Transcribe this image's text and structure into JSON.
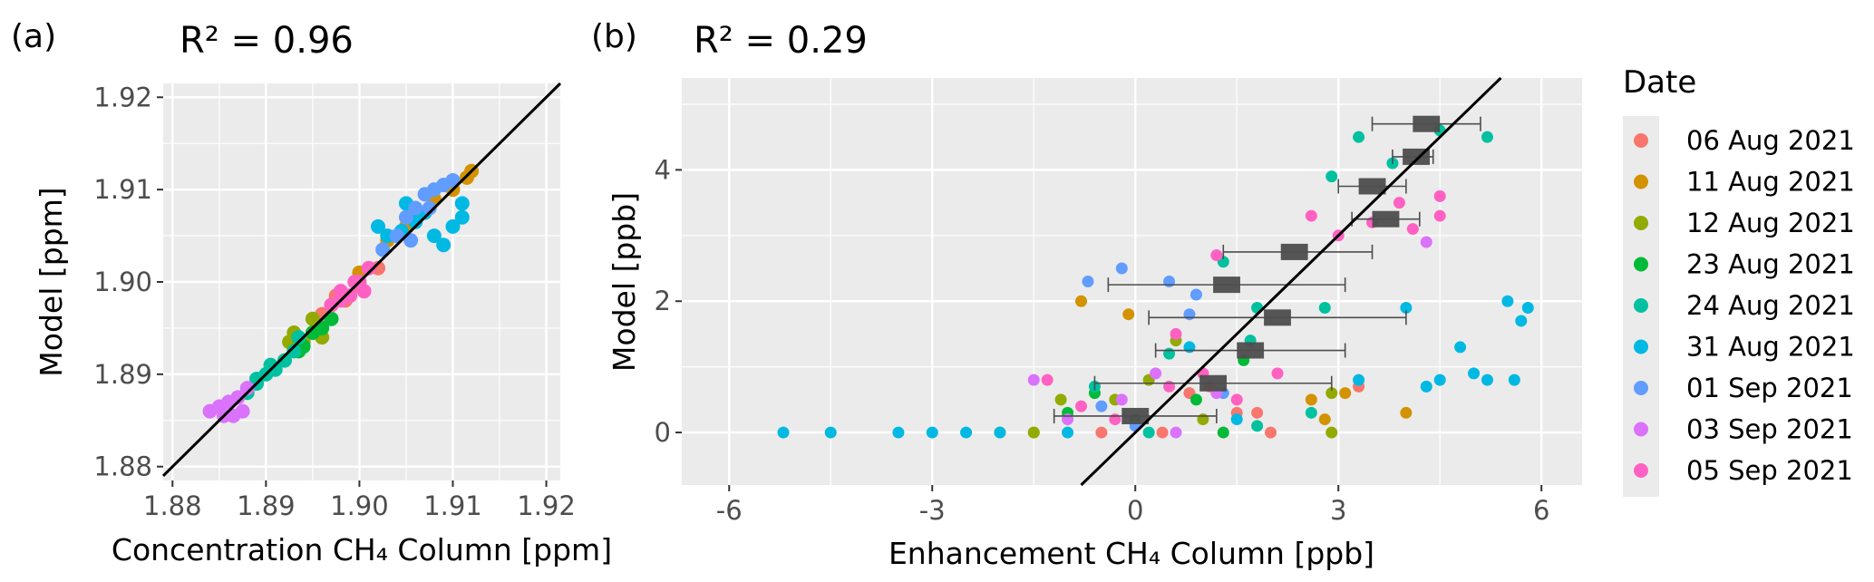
{
  "colors": {
    "06 Aug 2021": "#F8766D",
    "11 Aug 2021": "#D39200",
    "12 Aug 2021": "#93AA00",
    "23 Aug 2021": "#00BA38",
    "24 Aug 2021": "#00C19F",
    "31 Aug 2021": "#00B9E3",
    "01 Sep 2021": "#619CFF",
    "03 Sep 2021": "#DB72FB",
    "05 Sep 2021": "#FF61C3",
    "panel_bg": "#EBEBEB",
    "grid": "#FFFFFF",
    "box": "#4D4D4D"
  },
  "legend": {
    "title": "Date",
    "entries": [
      "06 Aug 2021",
      "11 Aug 2021",
      "12 Aug 2021",
      "23 Aug 2021",
      "24 Aug 2021",
      "31 Aug 2021",
      "01 Sep 2021",
      "03 Sep 2021",
      "05 Sep 2021"
    ],
    "placement": "right"
  },
  "chart_data": [
    {
      "panel_label": "(a)",
      "type": "scatter",
      "annotation": "R² = 0.96",
      "xlabel": "Concentration CH₄ Column [ppm]",
      "ylabel": "Model  [ppm]",
      "xlim": [
        1.879,
        1.9215
      ],
      "ylim": [
        1.8785,
        1.9215
      ],
      "xticks": [
        "1.88",
        "1.89",
        "1.90",
        "1.91",
        "1.92"
      ],
      "yticks": [
        "1.88",
        "1.89",
        "1.90",
        "1.91",
        "1.92"
      ],
      "reference_line": "y = x",
      "series": [
        {
          "name": "06 Aug 2021",
          "points": [
            [
              1.896,
              1.8965
            ],
            [
              1.8985,
              1.898
            ],
            [
              1.9,
              1.8995
            ],
            [
              1.902,
              1.9015
            ],
            [
              1.8975,
              1.8985
            ]
          ]
        },
        {
          "name": "11 Aug 2021",
          "points": [
            [
              1.905,
              1.906
            ],
            [
              1.908,
              1.909
            ],
            [
              1.91,
              1.91
            ],
            [
              1.912,
              1.912
            ],
            [
              1.9115,
              1.9113
            ],
            [
              1.9,
              1.901
            ],
            [
              1.903,
              1.9045
            ]
          ]
        },
        {
          "name": "12 Aug 2021",
          "points": [
            [
              1.893,
              1.8945
            ],
            [
              1.894,
              1.8935
            ],
            [
              1.895,
              1.896
            ],
            [
              1.896,
              1.894
            ],
            [
              1.897,
              1.8975
            ],
            [
              1.8925,
              1.8935
            ]
          ]
        },
        {
          "name": "23 Aug 2021",
          "points": [
            [
              1.894,
              1.893
            ],
            [
              1.895,
              1.8945
            ],
            [
              1.896,
              1.895
            ],
            [
              1.8935,
              1.8925
            ],
            [
              1.897,
              1.896
            ]
          ]
        },
        {
          "name": "24 Aug 2021",
          "points": [
            [
              1.888,
              1.888
            ],
            [
              1.889,
              1.8895
            ],
            [
              1.89,
              1.89
            ],
            [
              1.891,
              1.8905
            ],
            [
              1.892,
              1.8915
            ],
            [
              1.893,
              1.8925
            ],
            [
              1.8935,
              1.894
            ],
            [
              1.889,
              1.889
            ],
            [
              1.8905,
              1.891
            ]
          ]
        },
        {
          "name": "31 Aug 2021",
          "points": [
            [
              1.902,
              1.906
            ],
            [
              1.903,
              1.905
            ],
            [
              1.905,
              1.9085
            ],
            [
              1.906,
              1.9065
            ],
            [
              1.908,
              1.905
            ],
            [
              1.91,
              1.906
            ],
            [
              1.911,
              1.907
            ],
            [
              1.909,
              1.904
            ],
            [
              1.9045,
              1.9055
            ],
            [
              1.907,
              1.9075
            ],
            [
              1.911,
              1.9085
            ]
          ]
        },
        {
          "name": "01 Sep 2021",
          "points": [
            [
              1.904,
              1.905
            ],
            [
              1.905,
              1.907
            ],
            [
              1.906,
              1.908
            ],
            [
              1.907,
              1.9095
            ],
            [
              1.908,
              1.91
            ],
            [
              1.909,
              1.9105
            ],
            [
              1.91,
              1.911
            ],
            [
              1.9025,
              1.9035
            ],
            [
              1.9055,
              1.9045
            ],
            [
              1.9075,
              1.908
            ]
          ]
        },
        {
          "name": "03 Sep 2021",
          "points": [
            [
              1.884,
              1.886
            ],
            [
              1.885,
              1.8865
            ],
            [
              1.8855,
              1.8855
            ],
            [
              1.886,
              1.887
            ],
            [
              1.887,
              1.8875
            ],
            [
              1.888,
              1.8885
            ],
            [
              1.8865,
              1.8855
            ],
            [
              1.8875,
              1.886
            ]
          ]
        },
        {
          "name": "05 Sep 2021",
          "points": [
            [
              1.898,
              1.899
            ],
            [
              1.8995,
              1.9
            ],
            [
              1.9,
              1.9
            ],
            [
              1.901,
              1.9015
            ],
            [
              1.899,
              1.8985
            ],
            [
              1.897,
              1.8975
            ],
            [
              1.9005,
              1.899
            ],
            [
              1.898,
              1.898
            ]
          ]
        }
      ]
    },
    {
      "panel_label": "(b)",
      "type": "scatter",
      "annotation": "R² = 0.29",
      "xlabel": "Enhancement CH₄ Column [ppb]",
      "ylabel": "Model  [ppb]",
      "xlim": [
        -6.7,
        6.6
      ],
      "ylim": [
        -0.8,
        5.4
      ],
      "xticks": [
        "-6",
        "-3",
        "0",
        "3",
        "6"
      ],
      "yticks": [
        "0",
        "2",
        "4"
      ],
      "reference_line": "y = x",
      "series": [
        {
          "name": "06 Aug 2021",
          "points": [
            [
              0.4,
              0.0
            ],
            [
              1.1,
              0.7
            ],
            [
              1.5,
              0.3
            ],
            [
              3.3,
              0.7
            ],
            [
              0.8,
              0.6
            ],
            [
              -0.5,
              0.0
            ],
            [
              2.0,
              0.0
            ],
            [
              1.8,
              0.3
            ]
          ]
        },
        {
          "name": "11 Aug 2021",
          "points": [
            [
              -2.0,
              0.0
            ],
            [
              -0.8,
              2.0
            ],
            [
              -0.1,
              1.8
            ],
            [
              2.6,
              0.5
            ],
            [
              2.8,
              0.2
            ],
            [
              4.0,
              0.3
            ],
            [
              3.1,
              0.6
            ],
            [
              -1.5,
              0.0
            ]
          ]
        },
        {
          "name": "12 Aug 2021",
          "points": [
            [
              -1.5,
              0.0
            ],
            [
              0.6,
              1.4
            ],
            [
              -0.3,
              0.5
            ],
            [
              2.9,
              0.6
            ],
            [
              2.9,
              0.0
            ],
            [
              1.0,
              0.2
            ],
            [
              -1.1,
              0.5
            ],
            [
              0.2,
              0.8
            ]
          ]
        },
        {
          "name": "23 Aug 2021",
          "points": [
            [
              -0.6,
              0.6
            ],
            [
              0.9,
              0.5
            ],
            [
              1.6,
              1.1
            ],
            [
              -1.0,
              0.3
            ],
            [
              1.3,
              0.0
            ],
            [
              0.0,
              0.2
            ]
          ]
        },
        {
          "name": "24 Aug 2021",
          "points": [
            [
              3.3,
              4.5
            ],
            [
              3.8,
              4.1
            ],
            [
              4.5,
              4.6
            ],
            [
              5.2,
              4.5
            ],
            [
              2.9,
              3.9
            ],
            [
              1.3,
              2.6
            ],
            [
              1.8,
              1.9
            ],
            [
              2.8,
              1.9
            ],
            [
              1.7,
              1.4
            ],
            [
              0.5,
              1.2
            ],
            [
              -0.6,
              0.7
            ],
            [
              1.8,
              0.1
            ],
            [
              2.6,
              0.3
            ],
            [
              0.2,
              0.0
            ]
          ]
        },
        {
          "name": "31 Aug 2021",
          "points": [
            [
              -5.2,
              0.0
            ],
            [
              -4.5,
              0.0
            ],
            [
              -3.5,
              0.0
            ],
            [
              -3.0,
              0.0
            ],
            [
              -2.5,
              0.0
            ],
            [
              -2.0,
              0.0
            ],
            [
              -1.0,
              0.0
            ],
            [
              3.3,
              0.8
            ],
            [
              4.0,
              1.9
            ],
            [
              4.5,
              0.8
            ],
            [
              4.8,
              1.3
            ],
            [
              5.0,
              0.9
            ],
            [
              5.5,
              2.0
            ],
            [
              5.8,
              1.9
            ],
            [
              5.6,
              0.8
            ],
            [
              5.2,
              0.8
            ],
            [
              4.3,
              0.7
            ],
            [
              5.7,
              1.7
            ],
            [
              0.8,
              1.3
            ],
            [
              1.5,
              0.2
            ]
          ]
        },
        {
          "name": "01 Sep 2021",
          "points": [
            [
              -0.7,
              2.3
            ],
            [
              -0.2,
              2.5
            ],
            [
              0.5,
              2.3
            ],
            [
              0.9,
              2.1
            ],
            [
              0.8,
              1.8
            ],
            [
              1.3,
              0.6
            ],
            [
              -0.5,
              0.4
            ],
            [
              0.0,
              0.1
            ]
          ]
        },
        {
          "name": "03 Sep 2021",
          "points": [
            [
              -1.5,
              0.8
            ],
            [
              -0.2,
              0.5
            ],
            [
              1.2,
              0.6
            ],
            [
              0.3,
              0.9
            ],
            [
              4.3,
              2.9
            ],
            [
              -1.0,
              0.2
            ],
            [
              0.6,
              0.0
            ]
          ]
        },
        {
          "name": "05 Sep 2021",
          "points": [
            [
              3.5,
              3.2
            ],
            [
              3.9,
              3.5
            ],
            [
              4.1,
              3.1
            ],
            [
              4.5,
              3.6
            ],
            [
              4.5,
              3.3
            ],
            [
              3.0,
              3.0
            ],
            [
              2.6,
              3.3
            ],
            [
              1.2,
              2.7
            ],
            [
              0.6,
              1.5
            ],
            [
              -1.3,
              0.8
            ],
            [
              -0.8,
              0.4
            ],
            [
              0.5,
              0.7
            ],
            [
              1.0,
              0.9
            ],
            [
              -0.3,
              0.2
            ],
            [
              1.5,
              0.5
            ],
            [
              2.1,
              0.9
            ]
          ]
        }
      ],
      "bins": [
        {
          "median": 0.0,
          "q1": -0.2,
          "q3": 0.2,
          "min": -1.2,
          "max": 1.2,
          "y": 0.25
        },
        {
          "median": 1.15,
          "q1": 0.95,
          "q3": 1.35,
          "min": -0.6,
          "max": 2.9,
          "y": 0.75
        },
        {
          "median": 1.7,
          "q1": 1.5,
          "q3": 1.9,
          "min": 0.3,
          "max": 3.1,
          "y": 1.25
        },
        {
          "median": 2.1,
          "q1": 1.9,
          "q3": 2.3,
          "min": 0.2,
          "max": 4.0,
          "y": 1.75
        },
        {
          "median": 1.35,
          "q1": 1.15,
          "q3": 1.55,
          "min": -0.4,
          "max": 3.1,
          "y": 2.25
        },
        {
          "median": 2.35,
          "q1": 2.15,
          "q3": 2.55,
          "min": 1.3,
          "max": 3.5,
          "y": 2.75
        },
        {
          "median": 3.7,
          "q1": 3.5,
          "q3": 3.9,
          "min": 3.2,
          "max": 4.2,
          "y": 3.25
        },
        {
          "median": 3.5,
          "q1": 3.3,
          "q3": 3.7,
          "min": 3.0,
          "max": 4.0,
          "y": 3.75
        },
        {
          "median": 4.15,
          "q1": 3.95,
          "q3": 4.35,
          "min": 3.8,
          "max": 4.4,
          "y": 4.2
        },
        {
          "median": 4.3,
          "q1": 4.1,
          "q3": 4.5,
          "min": 3.5,
          "max": 5.1,
          "y": 4.7
        }
      ]
    }
  ]
}
